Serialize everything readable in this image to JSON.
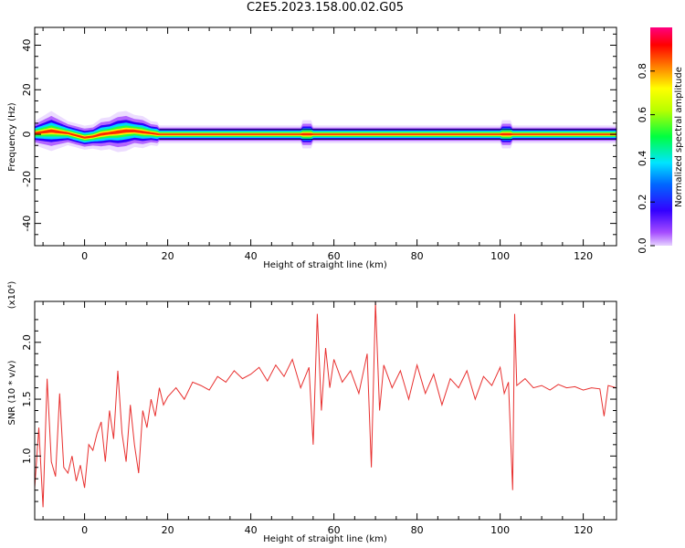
{
  "title": "C2E5.2023.158.00.02.G05",
  "colors": {
    "snr_line": "#e8302f",
    "axis": "#000000"
  },
  "colorbar": {
    "label": "Normalized spectral amplitude",
    "ticks": [
      "0.0",
      "0.2",
      "0.4",
      "0.6",
      "0.8"
    ],
    "range": [
      0,
      1
    ],
    "colormap": "rainbow-violet-to-magenta"
  },
  "chart_data": [
    {
      "type": "heatmap",
      "xlabel": "Height of straight line (km)",
      "ylabel": "Frequency (Hz)",
      "xlim": [
        -12,
        128
      ],
      "ylim": [
        -50,
        48
      ],
      "xticks": [
        "0",
        "20",
        "40",
        "60",
        "80",
        "100",
        "120"
      ],
      "yticks": [
        "-40",
        "-20",
        "0",
        "20",
        "40"
      ],
      "ridge": {
        "x": [
          -12,
          -10,
          -8,
          -6,
          -4,
          -2,
          0,
          2,
          4,
          6,
          8,
          10,
          12,
          14,
          16,
          18
        ],
        "freq_hz": [
          0.5,
          1.0,
          1.5,
          1.0,
          0.5,
          -0.5,
          -1.5,
          -1.0,
          0.0,
          0.5,
          1.0,
          1.5,
          1.5,
          1.0,
          0.5,
          0.0
        ],
        "halfwidth_hz": [
          3,
          4,
          5,
          4,
          3,
          3,
          3,
          3,
          4,
          4,
          5,
          5,
          4,
          4,
          3,
          3
        ]
      },
      "ridge_stable_from_km": 18,
      "ridge_stable_freq_hz": 0,
      "bumps_km": [
        53.5,
        101.5
      ]
    },
    {
      "type": "line",
      "xlabel": "Height of straight line (km)",
      "ylabel": "SNR (10 * v/v)",
      "yunit_multiplier": "(x10⁴)",
      "xlim": [
        -12,
        128
      ],
      "ylim": [
        0.44,
        2.36
      ],
      "xticks": [
        "0",
        "20",
        "40",
        "60",
        "80",
        "100",
        "120"
      ],
      "yticks": [
        "1.0",
        "1.5",
        "2.0"
      ],
      "series": [
        {
          "x": [
            -12,
            -11,
            -10,
            -9,
            -8,
            -7,
            -6,
            -5,
            -4,
            -3,
            -2,
            -1,
            0,
            1,
            2,
            3,
            4,
            5,
            6,
            7,
            8,
            9,
            10,
            11,
            12,
            13,
            14,
            15,
            16,
            17,
            18,
            19,
            20,
            22,
            24,
            26,
            28,
            30,
            32,
            34,
            36,
            38,
            40,
            42,
            44,
            46,
            48,
            50,
            52,
            54,
            55,
            56,
            57,
            58,
            59,
            60,
            62,
            64,
            66,
            68,
            69,
            70,
            71,
            72,
            74,
            76,
            78,
            80,
            82,
            84,
            86,
            88,
            90,
            92,
            94,
            96,
            98,
            100,
            101,
            102,
            103,
            103.5,
            104,
            106,
            108,
            110,
            112,
            114,
            116,
            118,
            120,
            122,
            124,
            125,
            126,
            128
          ],
          "y": [
            0.72,
            1.25,
            0.55,
            1.68,
            0.95,
            0.82,
            1.55,
            0.9,
            0.85,
            1.0,
            0.78,
            0.92,
            0.72,
            1.1,
            1.05,
            1.2,
            1.3,
            0.95,
            1.4,
            1.15,
            1.75,
            1.2,
            0.95,
            1.45,
            1.1,
            0.85,
            1.4,
            1.25,
            1.5,
            1.35,
            1.6,
            1.45,
            1.52,
            1.6,
            1.5,
            1.65,
            1.62,
            1.58,
            1.7,
            1.65,
            1.75,
            1.68,
            1.72,
            1.78,
            1.66,
            1.8,
            1.7,
            1.85,
            1.6,
            1.78,
            1.1,
            2.25,
            1.4,
            1.95,
            1.6,
            1.85,
            1.65,
            1.75,
            1.55,
            1.9,
            0.9,
            2.35,
            1.4,
            1.8,
            1.6,
            1.75,
            1.5,
            1.8,
            1.55,
            1.72,
            1.45,
            1.68,
            1.6,
            1.75,
            1.5,
            1.7,
            1.62,
            1.78,
            1.55,
            1.65,
            0.7,
            2.25,
            1.62,
            1.68,
            1.6,
            1.62,
            1.58,
            1.63,
            1.6,
            1.61,
            1.58,
            1.6,
            1.59,
            1.35,
            1.62,
            1.6
          ]
        }
      ]
    }
  ]
}
